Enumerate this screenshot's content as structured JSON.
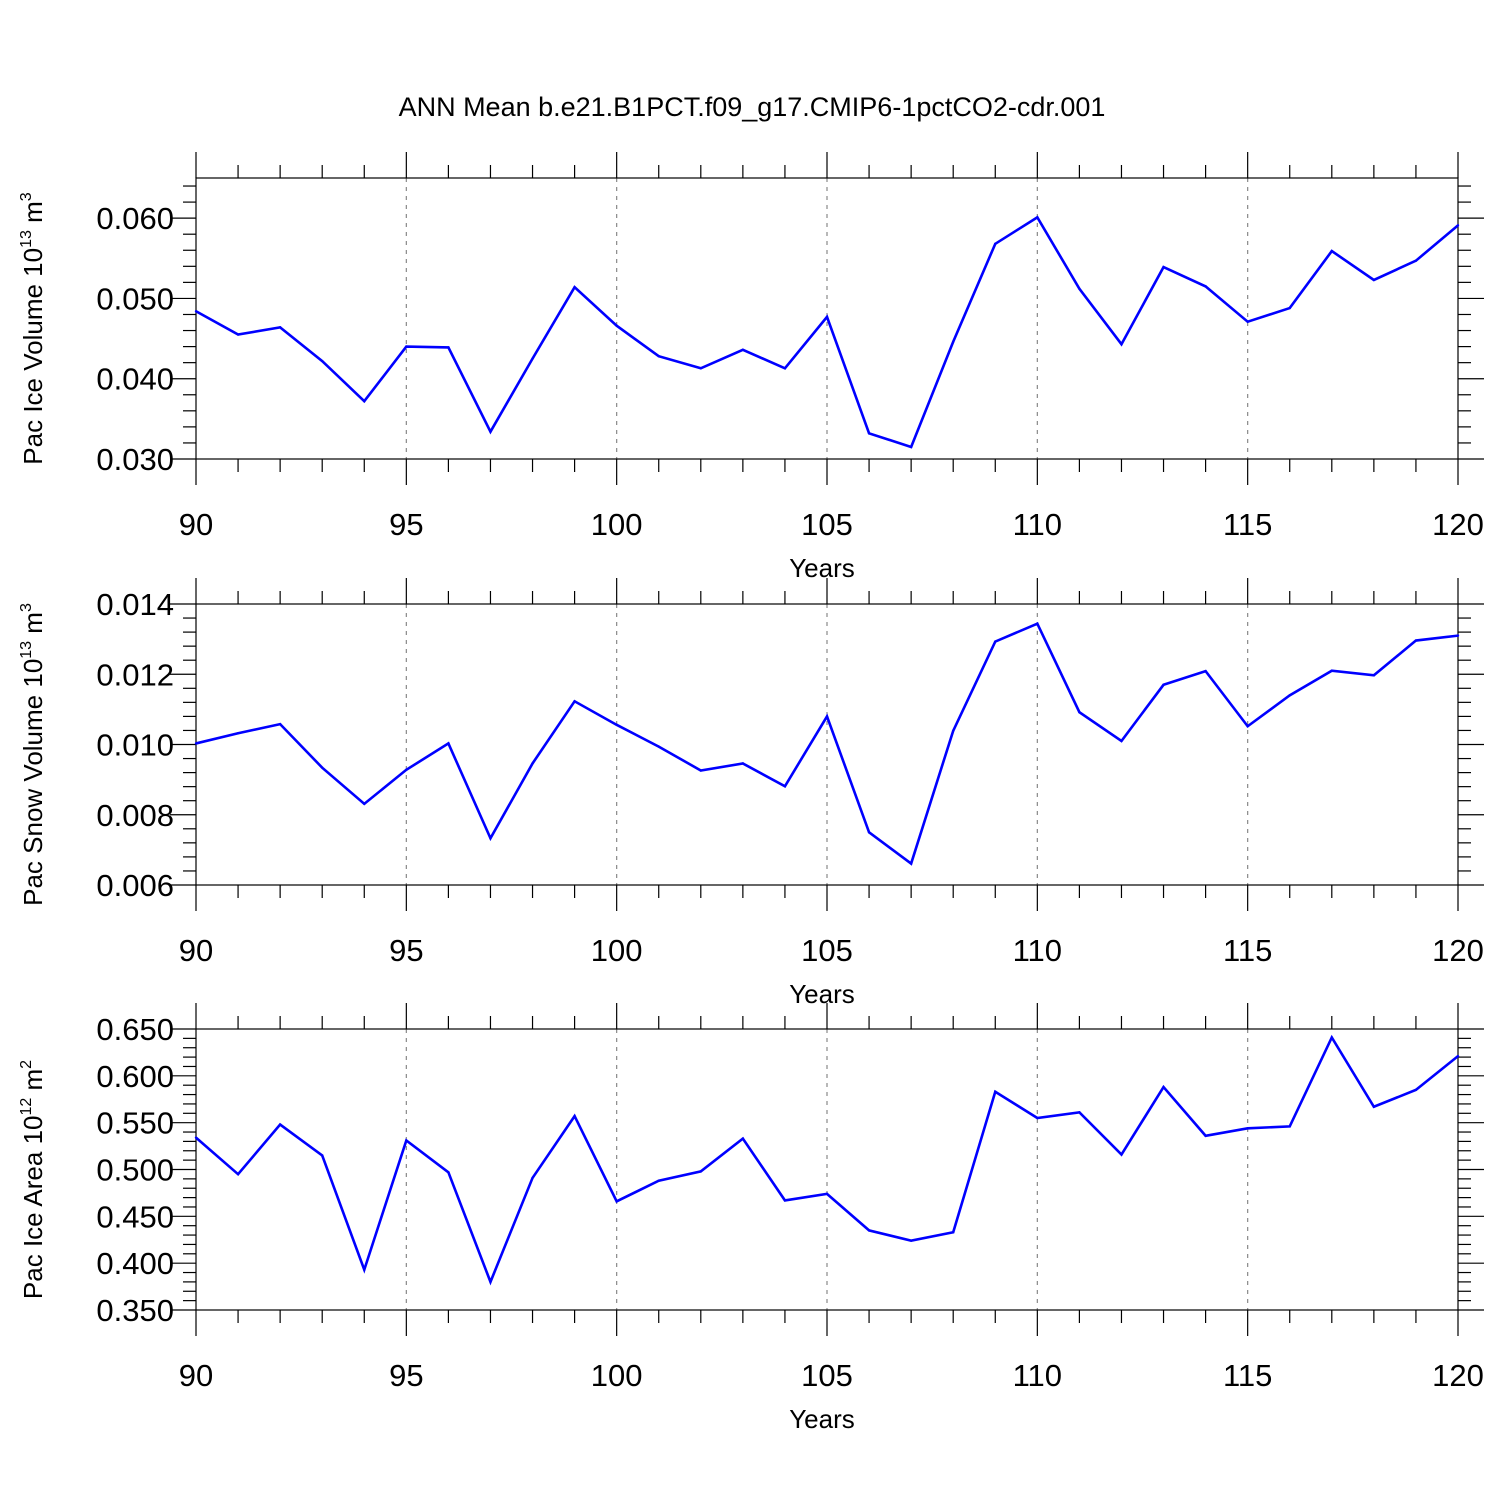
{
  "chart_data": [
    {
      "type": "line",
      "title": "ANN Mean b.e21.B1PCT.f09_g17.CMIP6-1pctCO2-cdr.001",
      "ylabel": "Pac Ice Volume 10",
      "ylabel_exp": "13",
      "ylabel_unit": " m",
      "ylabel_unit_exp": "3",
      "xlabel": "Years",
      "xlim": [
        90,
        120
      ],
      "ylim": [
        0.03,
        0.065
      ],
      "xticks": [
        "90",
        "95",
        "100",
        "105",
        "110",
        "115",
        "120"
      ],
      "yticks": [
        "0.030",
        "0.040",
        "0.050",
        "0.060"
      ],
      "series": [
        {
          "name": "Pac Ice Volume",
          "color": "#0000ff",
          "x": [
            90,
            91,
            92,
            93,
            94,
            95,
            96,
            97,
            98,
            99,
            100,
            101,
            102,
            103,
            104,
            105,
            106,
            107,
            108,
            109,
            110,
            111,
            112,
            113,
            114,
            115,
            116,
            117,
            118,
            119,
            120
          ],
          "values": [
            0.0484,
            0.0455,
            0.0464,
            0.0422,
            0.0372,
            0.044,
            0.0439,
            0.0334,
            0.0425,
            0.0514,
            0.0466,
            0.0428,
            0.0413,
            0.0436,
            0.0413,
            0.0477,
            0.0332,
            0.0315,
            0.0446,
            0.0568,
            0.0601,
            0.0512,
            0.0443,
            0.0539,
            0.0515,
            0.0471,
            0.0488,
            0.0559,
            0.0523,
            0.0547,
            0.0591
          ]
        }
      ]
    },
    {
      "type": "line",
      "ylabel": "Pac Snow Volume 10",
      "ylabel_exp": "13",
      "ylabel_unit": " m",
      "ylabel_unit_exp": "3",
      "xlabel": "Years",
      "xlim": [
        90,
        120
      ],
      "ylim": [
        0.006,
        0.014
      ],
      "xticks": [
        "90",
        "95",
        "100",
        "105",
        "110",
        "115",
        "120"
      ],
      "yticks": [
        "0.006",
        "0.008",
        "0.010",
        "0.012",
        "0.014"
      ],
      "series": [
        {
          "name": "Pac Snow Volume",
          "color": "#0000ff",
          "x": [
            90,
            91,
            92,
            93,
            94,
            95,
            96,
            97,
            98,
            99,
            100,
            101,
            102,
            103,
            104,
            105,
            106,
            107,
            108,
            109,
            110,
            111,
            112,
            113,
            114,
            115,
            116,
            117,
            118,
            119,
            120
          ],
          "values": [
            0.01003,
            0.01032,
            0.01058,
            0.00934,
            0.00831,
            0.00928,
            0.01003,
            0.00733,
            0.00946,
            0.01123,
            0.01056,
            0.00994,
            0.00926,
            0.00946,
            0.00881,
            0.0108,
            0.0075,
            0.00661,
            0.01039,
            0.01293,
            0.01344,
            0.01092,
            0.0101,
            0.0117,
            0.01209,
            0.01052,
            0.0114,
            0.0121,
            0.01197,
            0.01296,
            0.0131
          ]
        }
      ]
    },
    {
      "type": "line",
      "ylabel": "Pac Ice Area 10",
      "ylabel_exp": "12",
      "ylabel_unit": " m",
      "ylabel_unit_exp": "2",
      "xlabel": "Years",
      "xlim": [
        90,
        120
      ],
      "ylim": [
        0.35,
        0.65
      ],
      "xticks": [
        "90",
        "95",
        "100",
        "105",
        "110",
        "115",
        "120"
      ],
      "yticks": [
        "0.350",
        "0.400",
        "0.450",
        "0.500",
        "0.550",
        "0.600",
        "0.650"
      ],
      "series": [
        {
          "name": "Pac Ice Area",
          "color": "#0000ff",
          "x": [
            90,
            91,
            92,
            93,
            94,
            95,
            96,
            97,
            98,
            99,
            100,
            101,
            102,
            103,
            104,
            105,
            106,
            107,
            108,
            109,
            110,
            111,
            112,
            113,
            114,
            115,
            116,
            117,
            118,
            119,
            120
          ],
          "values": [
            0.534,
            0.495,
            0.548,
            0.515,
            0.393,
            0.531,
            0.497,
            0.38,
            0.491,
            0.557,
            0.466,
            0.488,
            0.498,
            0.533,
            0.467,
            0.474,
            0.435,
            0.424,
            0.433,
            0.583,
            0.555,
            0.561,
            0.516,
            0.588,
            0.536,
            0.544,
            0.546,
            0.641,
            0.567,
            0.585,
            0.621
          ]
        }
      ]
    }
  ]
}
